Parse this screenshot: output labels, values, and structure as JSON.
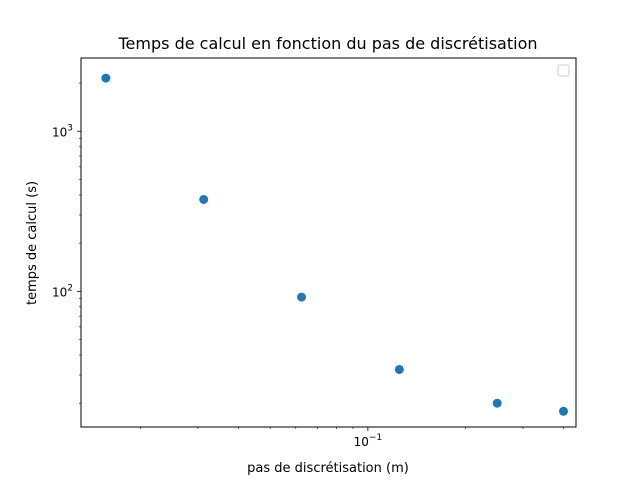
{
  "chart_data": {
    "type": "scatter",
    "title": "Temps de calcul en fonction du pas de discrétisation",
    "xlabel": "pas de discrétisation (m)",
    "ylabel": "temps de calcul (s)",
    "xscale": "log",
    "yscale": "log",
    "xlim": [
      0.0131,
      0.437
    ],
    "ylim": [
      14.2,
      2870
    ],
    "x_ticks": [
      {
        "value": 0.1,
        "base": "10",
        "exp": "−1"
      }
    ],
    "y_ticks": [
      {
        "value": 100,
        "base": "10",
        "exp": "2"
      },
      {
        "value": 1000,
        "base": "10",
        "exp": "3"
      }
    ],
    "grid": false,
    "legend": {
      "placement": "top-right",
      "entries": []
    },
    "series": [
      {
        "color": "#1f77b4",
        "x": [
          0.015625,
          0.03125,
          0.0625,
          0.125,
          0.25,
          0.4
        ],
        "y": [
          2150,
          375,
          92,
          32.5,
          20,
          17.8
        ]
      }
    ]
  }
}
